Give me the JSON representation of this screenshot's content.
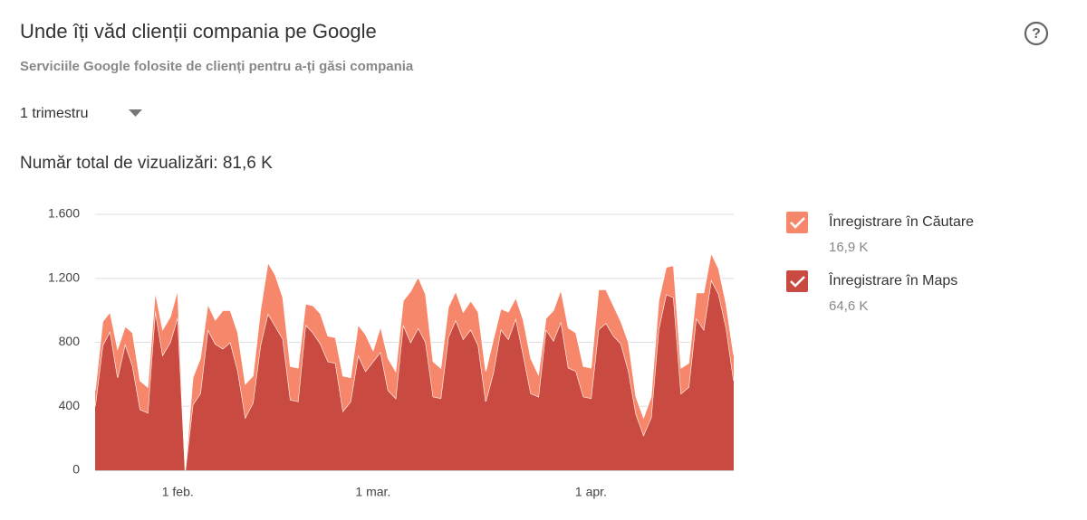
{
  "chart_data": {
    "type": "stacked_area",
    "title": "Unde îți văd clienții compania pe Google",
    "subtitle": "Serviciile Google folosite de clienți pentru a-ți găsi compania",
    "period": "1 trimestru",
    "total": "Număr total de vizualizări: 81,6 K",
    "categories": [
      null,
      null,
      null,
      null,
      null,
      null,
      null,
      null,
      null,
      null,
      null,
      "1 feb.",
      null,
      null,
      null,
      null,
      null,
      null,
      null,
      null,
      null,
      null,
      null,
      null,
      null,
      null,
      null,
      null,
      null,
      null,
      null,
      null,
      null,
      null,
      null,
      null,
      null,
      "1 mar.",
      null,
      null,
      null,
      null,
      null,
      null,
      null,
      null,
      null,
      null,
      null,
      null,
      null,
      null,
      null,
      null,
      null,
      null,
      null,
      null,
      null,
      null,
      null,
      null,
      null,
      null,
      null,
      null,
      "1 apr.",
      null,
      null,
      null,
      null,
      null,
      null,
      null,
      null,
      null,
      null,
      null,
      null,
      null,
      null,
      null,
      null,
      null,
      null,
      null
    ],
    "series": [
      {
        "name": "Înregistrare în Căutare",
        "total_label": "16,9 K",
        "color": "#f7876a",
        "values": [
          100,
          150,
          120,
          180,
          110,
          210,
          180,
          160,
          120,
          160,
          160,
          170,
          0,
          170,
          220,
          160,
          150,
          240,
          200,
          240,
          210,
          170,
          220,
          320,
          320,
          260,
          210,
          210,
          130,
          170,
          190,
          160,
          160,
          220,
          150,
          190,
          230,
          70,
          160,
          200,
          170,
          150,
          320,
          320,
          300,
          220,
          190,
          190,
          180,
          170,
          180,
          210,
          190,
          210,
          130,
          170,
          130,
          220,
          220,
          140,
          70,
          190,
          200,
          250,
          240,
          190,
          190,
          250,
          210,
          190,
          140,
          180,
          110,
          110,
          130,
          180,
          170,
          200,
          160,
          150,
          160,
          230,
          170,
          160,
          150,
          160
        ]
      },
      {
        "name": "Înregistrare în Maps",
        "total_label": "64,6 K",
        "color": "#c84a40",
        "values": [
          400,
          780,
          870,
          580,
          790,
          650,
          380,
          360,
          1000,
          720,
          800,
          960,
          0,
          410,
          480,
          880,
          790,
          760,
          800,
          620,
          330,
          420,
          780,
          980,
          900,
          820,
          440,
          430,
          910,
          860,
          790,
          680,
          670,
          370,
          430,
          720,
          620,
          680,
          740,
          500,
          450,
          910,
          800,
          890,
          800,
          460,
          450,
          830,
          940,
          820,
          880,
          780,
          430,
          610,
          880,
          820,
          950,
          720,
          480,
          460,
          880,
          810,
          930,
          640,
          620,
          460,
          450,
          880,
          920,
          840,
          790,
          620,
          350,
          220,
          330,
          880,
          1100,
          1080,
          480,
          520,
          950,
          880,
          1190,
          1100,
          890,
          560
        ]
      }
    ],
    "ylim": [
      0,
      1600
    ],
    "yticks": [
      0,
      400,
      800,
      {
        "value": 1200,
        "label": "1.200"
      },
      {
        "value": 1600,
        "label": "1.600"
      }
    ],
    "grid": true
  }
}
